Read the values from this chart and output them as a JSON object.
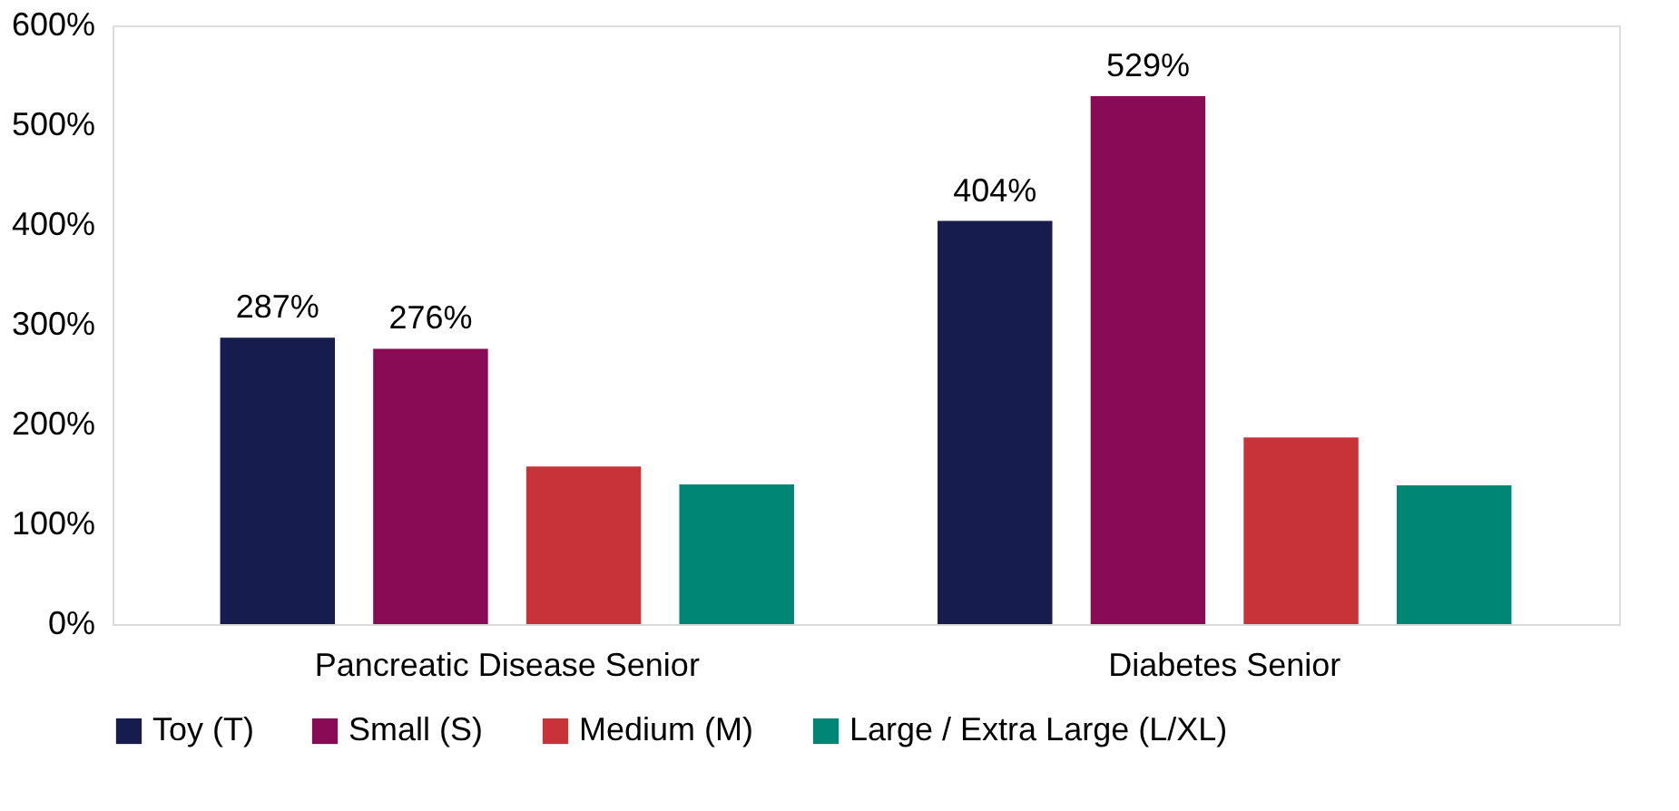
{
  "chart_data": {
    "type": "bar",
    "categories": [
      "Pancreatic Disease Senior",
      "Diabetes Senior"
    ],
    "series": [
      {
        "name": "Toy (T)",
        "color": "#161c4e",
        "values": [
          287,
          404
        ],
        "value_labels": [
          "287%",
          "404%"
        ]
      },
      {
        "name": "Small (S)",
        "color": "#8a0b55",
        "values": [
          276,
          529
        ],
        "value_labels": [
          "276%",
          "529%"
        ]
      },
      {
        "name": "Medium (M)",
        "color": "#c8333a",
        "values": [
          158,
          187
        ],
        "value_labels": [
          null,
          null
        ]
      },
      {
        "name": "Large / Extra Large (L/XL)",
        "color": "#008675",
        "values": [
          140,
          139
        ],
        "value_labels": [
          null,
          null
        ]
      }
    ],
    "ylim": [
      0,
      600
    ],
    "yticks": [
      {
        "value": 0,
        "label": "0%"
      },
      {
        "value": 100,
        "label": "100%"
      },
      {
        "value": 200,
        "label": "200%"
      },
      {
        "value": 300,
        "label": "300%"
      },
      {
        "value": 400,
        "label": "400%"
      },
      {
        "value": 500,
        "label": "500%"
      },
      {
        "value": 600,
        "label": "600%"
      }
    ],
    "grid": false,
    "legend": "bottom"
  }
}
